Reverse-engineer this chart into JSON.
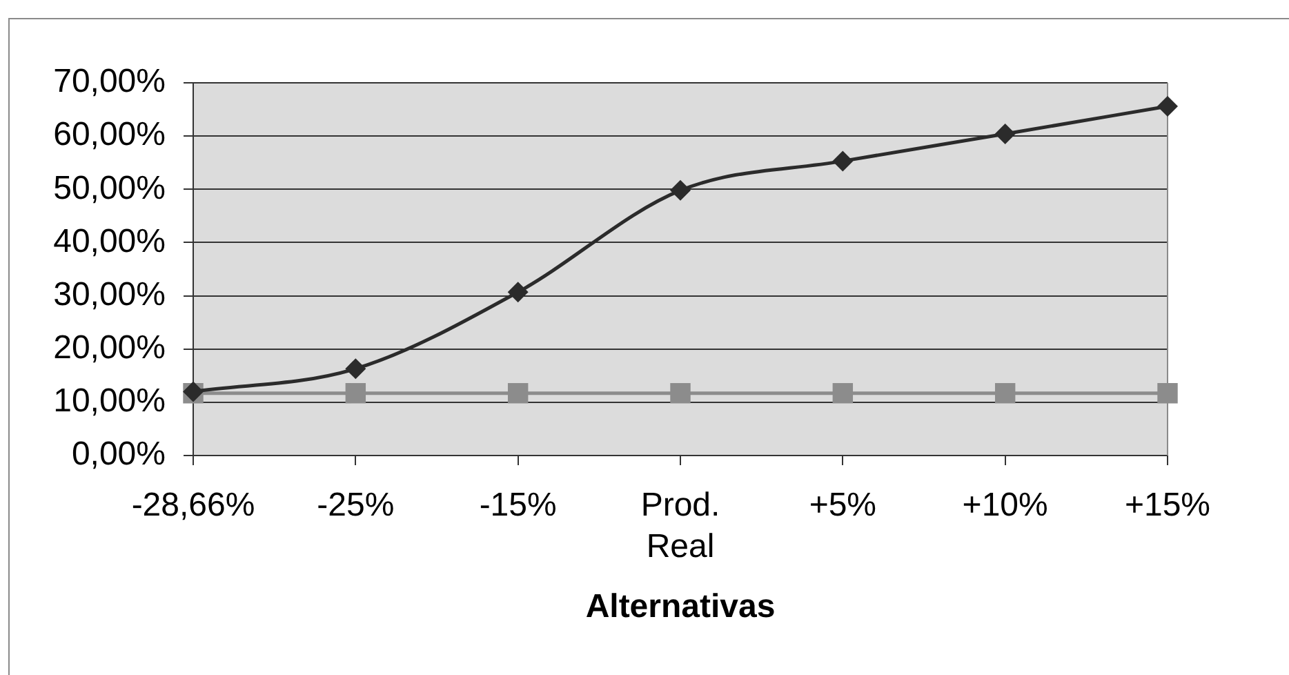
{
  "chart_data": {
    "type": "line",
    "xlabel": "Alternativas",
    "categories": [
      "-28,66%",
      "-25%",
      "-15%",
      "Prod. Real",
      "+5%",
      "+10%",
      "+15%"
    ],
    "series": [
      {
        "color": "#2b2b2b",
        "marker": "diamond",
        "values": [
          12.0,
          16.3,
          30.7,
          49.8,
          55.3,
          60.4,
          65.6
        ]
      },
      {
        "color": "#8c8c8c",
        "marker": "square",
        "values": [
          11.7,
          11.7,
          11.7,
          11.7,
          11.7,
          11.7,
          11.7
        ]
      }
    ],
    "ylim": [
      0,
      70
    ],
    "yticks": [
      {
        "value": 0,
        "label": "0,00%"
      },
      {
        "value": 10,
        "label": "10,00%"
      },
      {
        "value": 20,
        "label": "20,00%"
      },
      {
        "value": 30,
        "label": "30,00%"
      },
      {
        "value": 40,
        "label": "40,00%"
      },
      {
        "value": 50,
        "label": "50,00%"
      },
      {
        "value": 60,
        "label": "60,00%"
      },
      {
        "value": 70,
        "label": "70,00%"
      }
    ],
    "grid": "y",
    "legend": false
  }
}
